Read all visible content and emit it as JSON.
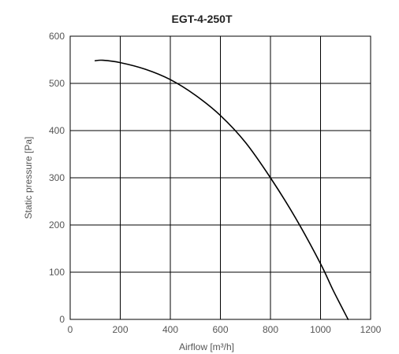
{
  "chart_data": {
    "type": "line",
    "title": "EGT-4-250T",
    "xlabel": "Airflow [m³/h]",
    "ylabel": "Static pressure [Pa]",
    "xlim": [
      0,
      1200
    ],
    "ylim": [
      0,
      600
    ],
    "x_ticks": [
      0,
      200,
      400,
      600,
      800,
      1000,
      1200
    ],
    "y_ticks": [
      0,
      100,
      200,
      300,
      400,
      500,
      600
    ],
    "grid": true,
    "legend": "none",
    "series": [
      {
        "color": "#000000",
        "x": [
          100,
          130,
          200,
          300,
          400,
          500,
          600,
          700,
          800,
          900,
          1000,
          1050,
          1110
        ],
        "y": [
          548,
          549,
          544,
          530,
          508,
          475,
          432,
          375,
          300,
          215,
          118,
          62,
          0
        ]
      }
    ]
  }
}
